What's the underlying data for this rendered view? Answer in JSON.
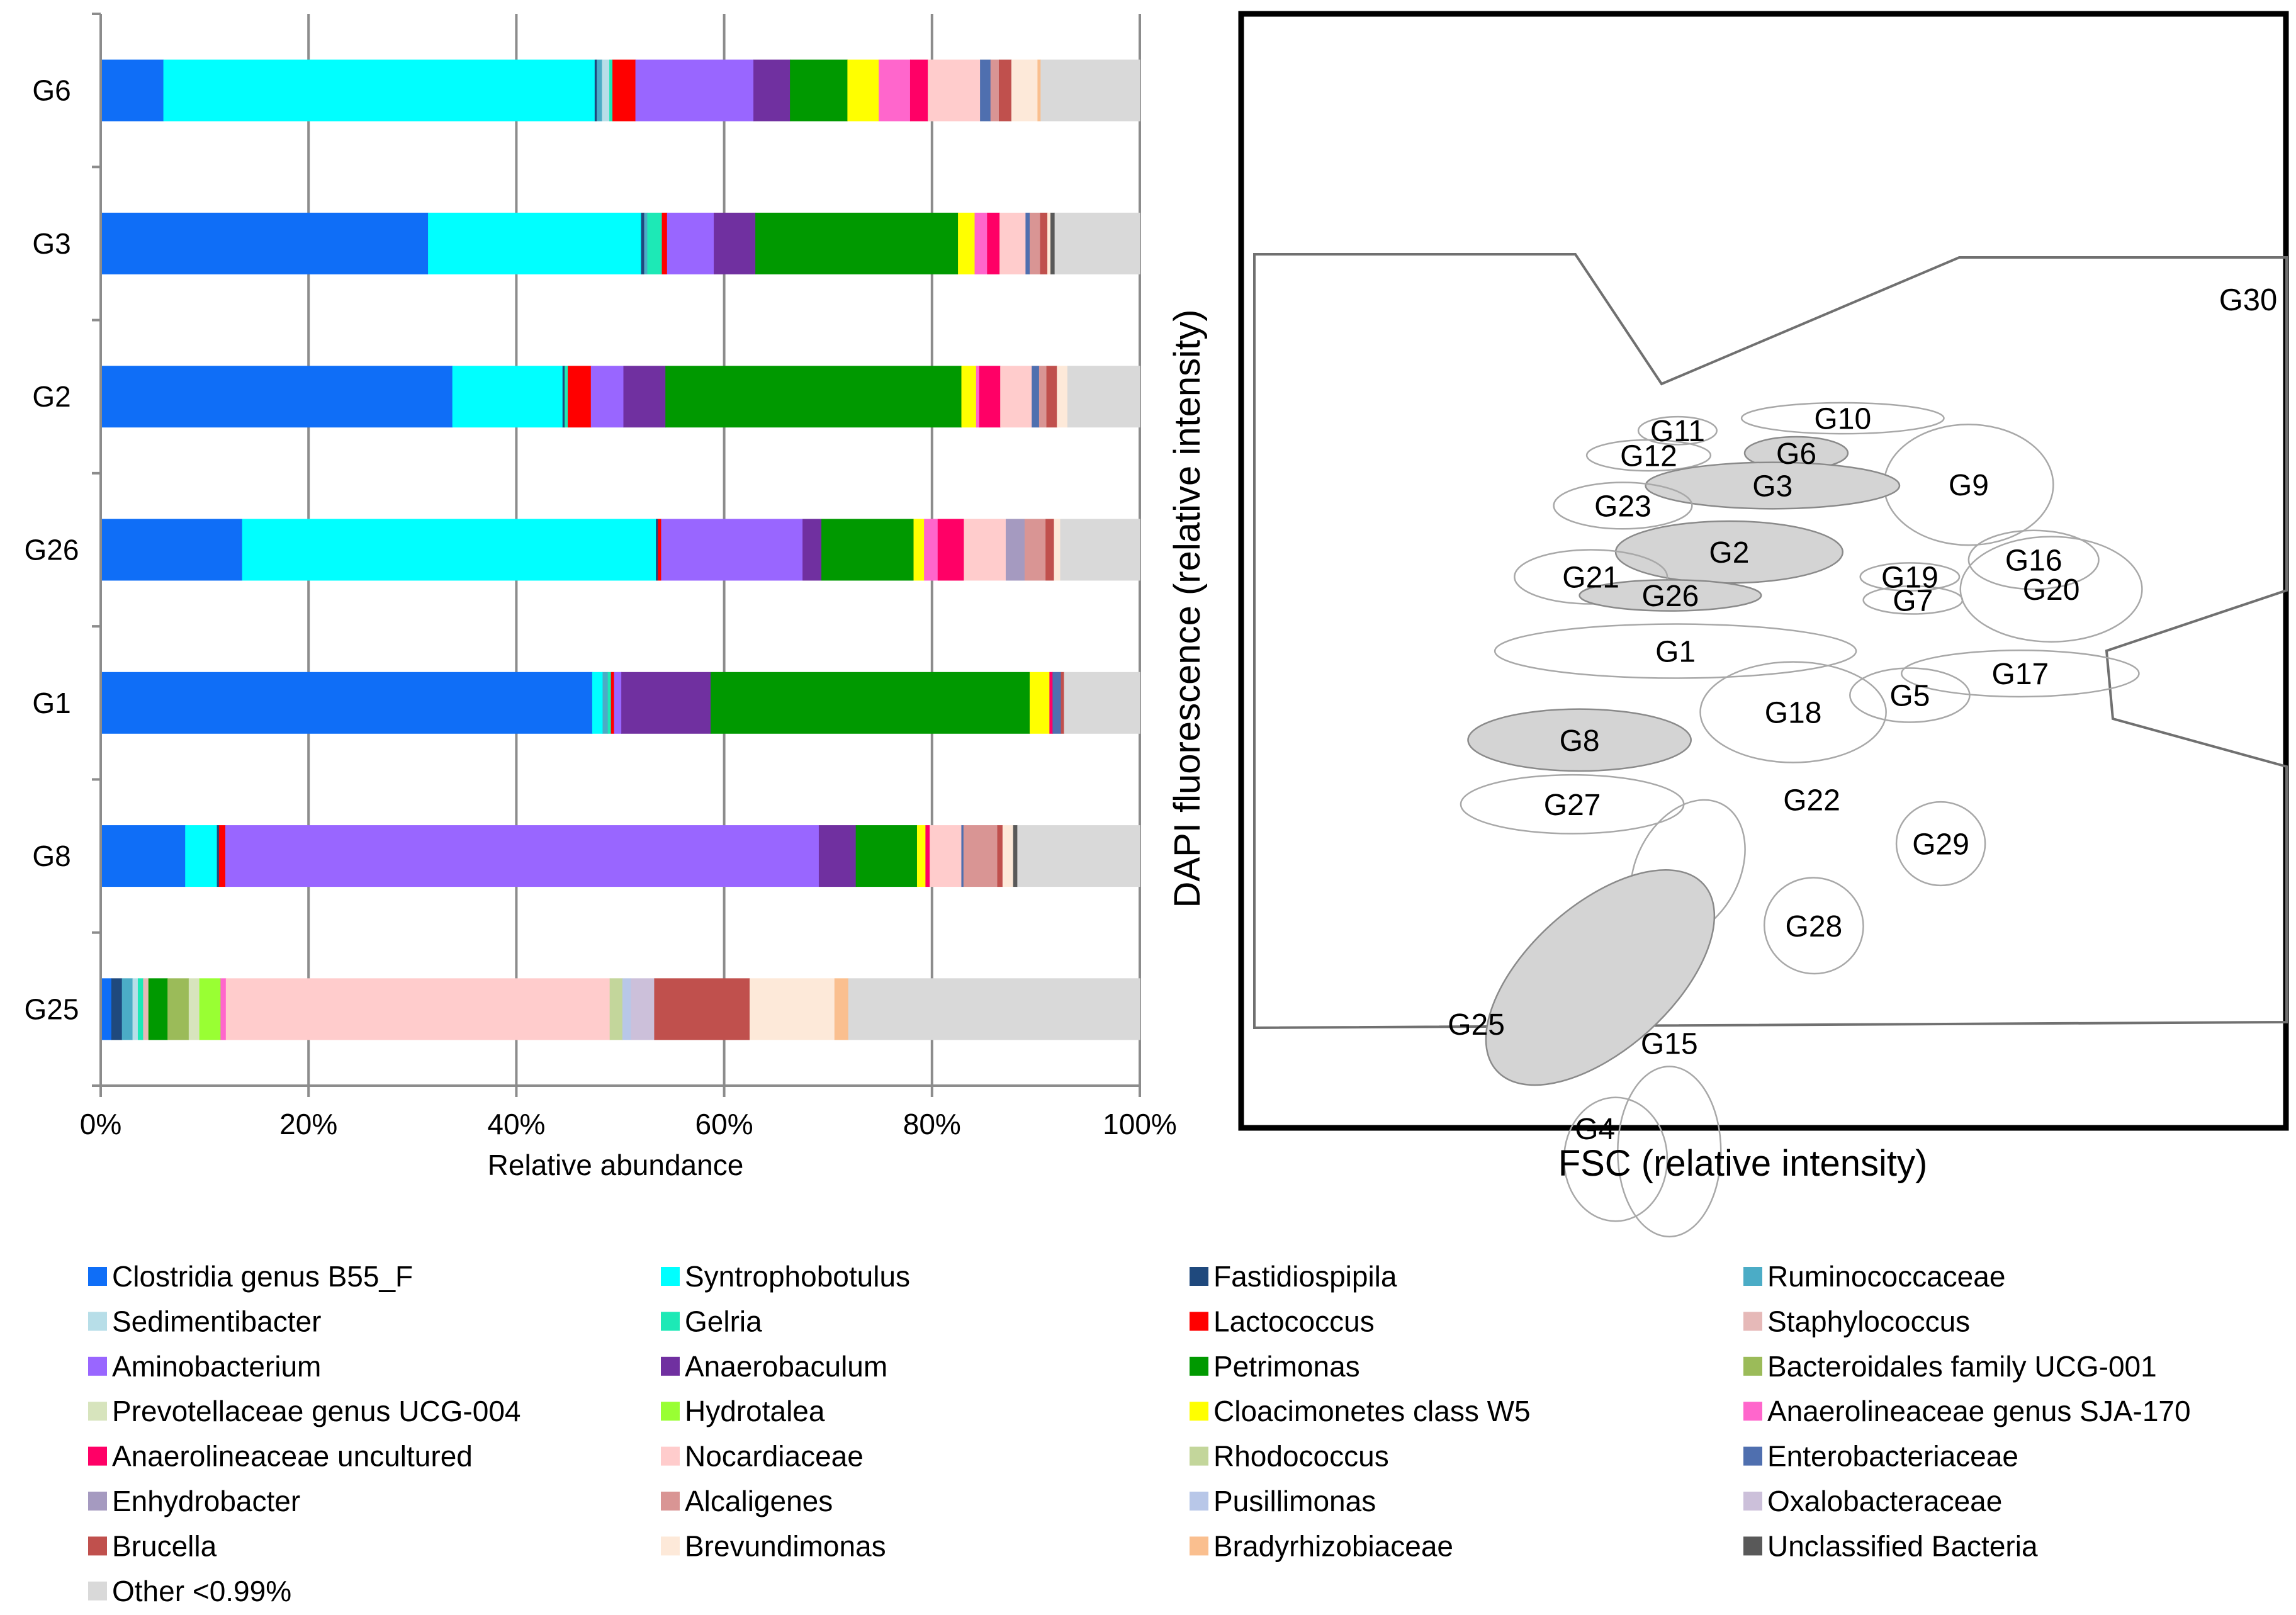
{
  "chart_data": [
    {
      "type": "bar",
      "orientation": "horizontal",
      "stacked": true,
      "normalized": true,
      "xlabel": "Relative abundance",
      "xlim": [
        0,
        100
      ],
      "xticks": [
        "0%",
        "20%",
        "40%",
        "60%",
        "80%",
        "100%"
      ],
      "grid": "vertical",
      "legend_position": "bottom",
      "categories": [
        "G6",
        "G3",
        "G2",
        "G26",
        "G1",
        "G8",
        "G25"
      ],
      "series": [
        {
          "name": "Clostridia genus B55_F",
          "color": "#0f6ef7",
          "values": [
            6.0,
            31.5,
            33.5,
            13.5,
            47.3,
            8.0,
            1.0
          ]
        },
        {
          "name": "Syntrophobotulus",
          "color": "#00ffff",
          "values": [
            41.3,
            20.5,
            10.5,
            39.5,
            1.0,
            3.0,
            0.0
          ]
        },
        {
          "name": "Fastidiospipila",
          "color": "#1f497d",
          "values": [
            0.2,
            0.3,
            0.2,
            0.2,
            0.0,
            0.2,
            1.0
          ]
        },
        {
          "name": "Ruminococcaceae",
          "color": "#4bacc6",
          "values": [
            0.5,
            0.3,
            0.0,
            0.0,
            0.5,
            0.0,
            1.0
          ]
        },
        {
          "name": "Sedimentibacter",
          "color": "#b7dee8",
          "values": [
            0.7,
            0.0,
            0.0,
            0.0,
            0.0,
            0.0,
            0.5
          ]
        },
        {
          "name": "Gelria",
          "color": "#1de9b6",
          "values": [
            0.3,
            1.4,
            0.3,
            0.0,
            0.3,
            0.0,
            0.5
          ]
        },
        {
          "name": "Lactococcus",
          "color": "#ff0000",
          "values": [
            2.2,
            0.5,
            2.2,
            0.3,
            0.3,
            0.6,
            0.0
          ]
        },
        {
          "name": "Staphylococcus",
          "color": "#e6b9b8",
          "values": [
            0.0,
            0.0,
            0.0,
            0.0,
            0.0,
            0.0,
            0.5
          ]
        },
        {
          "name": "Aminobacterium",
          "color": "#9966ff",
          "values": [
            11.3,
            4.5,
            3.1,
            13.5,
            0.7,
            56.2,
            0.0
          ]
        },
        {
          "name": "Anaerobaculum",
          "color": "#7030a0",
          "values": [
            3.5,
            4.0,
            4.0,
            1.8,
            8.6,
            3.5,
            0.0
          ]
        },
        {
          "name": "Petrimonas",
          "color": "#009900",
          "values": [
            5.5,
            19.5,
            28.2,
            8.8,
            30.7,
            5.8,
            1.8
          ]
        },
        {
          "name": "Bacteroidales family UCG-001",
          "color": "#9bbb59",
          "values": [
            0.0,
            0.0,
            0.0,
            0.0,
            0.0,
            0.0,
            2.0
          ]
        },
        {
          "name": "Prevotellaceae genus UCG-004",
          "color": "#d7e4bd",
          "values": [
            0.0,
            0.0,
            0.0,
            0.0,
            0.0,
            0.0,
            1.0
          ]
        },
        {
          "name": "Hydrotalea",
          "color": "#99ff33",
          "values": [
            0.0,
            0.0,
            0.0,
            0.0,
            0.0,
            0.0,
            2.0
          ]
        },
        {
          "name": "Cloacimonetes class W5",
          "color": "#ffff00",
          "values": [
            3.0,
            1.6,
            1.4,
            1.0,
            1.9,
            0.8,
            0.0
          ]
        },
        {
          "name": "Anaerolineaceae genus SJA-170",
          "color": "#ff66cc",
          "values": [
            3.0,
            1.2,
            0.3,
            1.3,
            0.0,
            0.0,
            0.5
          ]
        },
        {
          "name": "Anaerolineaceae uncultured",
          "color": "#ff0066",
          "values": [
            1.7,
            1.2,
            2.0,
            2.5,
            0.3,
            0.4,
            0.0
          ]
        },
        {
          "name": "Nocardiaceae",
          "color": "#ffcccc",
          "values": [
            5.0,
            2.5,
            3.0,
            4.0,
            0.0,
            3.0,
            36.2
          ]
        },
        {
          "name": "Rhodococcus",
          "color": "#c3d69b",
          "values": [
            0.0,
            0.0,
            0.0,
            0.0,
            0.0,
            0.0,
            1.2
          ]
        },
        {
          "name": "Enterobacteriaceae",
          "color": "#4f6faf",
          "values": [
            1.0,
            0.4,
            0.7,
            0.0,
            0.8,
            0.2,
            0.0
          ]
        },
        {
          "name": "Enhydrobacter",
          "color": "#a59ac0",
          "values": [
            0.0,
            0.0,
            0.0,
            1.8,
            0.0,
            0.0,
            0.0
          ]
        },
        {
          "name": "Alcaligenes",
          "color": "#d99594",
          "values": [
            0.8,
            1.0,
            0.7,
            2.0,
            0.0,
            3.2,
            0.0
          ]
        },
        {
          "name": "Pusillimonas",
          "color": "#b8c7e8",
          "values": [
            0.0,
            0.0,
            0.0,
            0.0,
            0.0,
            0.0,
            0.8
          ]
        },
        {
          "name": "Oxalobacteraceae",
          "color": "#ccc0da",
          "values": [
            0.0,
            0.0,
            0.0,
            0.0,
            0.0,
            0.0,
            2.2
          ]
        },
        {
          "name": "Brucella",
          "color": "#c0504d",
          "values": [
            1.2,
            0.7,
            1.0,
            0.8,
            0.3,
            0.5,
            9.0
          ]
        },
        {
          "name": "Brevundimonas",
          "color": "#fde9d9",
          "values": [
            2.5,
            0.3,
            1.0,
            0.6,
            0.0,
            1.0,
            8.0
          ]
        },
        {
          "name": "Bradyrhizobiaceae",
          "color": "#fabf8f",
          "values": [
            0.3,
            0.0,
            0.0,
            0.0,
            0.0,
            0.0,
            1.3
          ]
        },
        {
          "name": "Unclassified Bacteria",
          "color": "#595959",
          "values": [
            0.0,
            0.4,
            0.0,
            0.0,
            0.0,
            0.4,
            0.0
          ]
        },
        {
          "name": "Other <0.99%",
          "color": "#d9d9d9",
          "values": [
            9.5,
            8.2,
            6.9,
            7.6,
            7.3,
            11.6,
            27.5
          ]
        }
      ]
    },
    {
      "type": "scatter",
      "subtype": "flow-cytometry gate map",
      "xlabel": "FSC (relative intensity)",
      "ylabel": "DAPI fluorescence (relative intensity)",
      "xlim": [
        0,
        100
      ],
      "ylim": [
        0,
        100
      ],
      "main_gate_label": "G30",
      "gates": [
        {
          "name": "G10",
          "cx": 57.0,
          "cy": 78.8,
          "rx": 9.8,
          "ry": 2.0,
          "angle": 0,
          "filled": false
        },
        {
          "name": "G11",
          "cx": 41.0,
          "cy": 77.2,
          "rx": 3.8,
          "ry": 1.8,
          "angle": 0,
          "filled": false
        },
        {
          "name": "G6",
          "cx": 52.5,
          "cy": 74.3,
          "rx": 5.0,
          "ry": 2.1,
          "angle": 0,
          "filled": true
        },
        {
          "name": "G12",
          "cx": 38.2,
          "cy": 74.0,
          "rx": 6.0,
          "ry": 2.0,
          "angle": 0,
          "filled": false
        },
        {
          "name": "G9",
          "cx": 69.2,
          "cy": 70.2,
          "rx": 8.2,
          "ry": 7.8,
          "angle": 0,
          "filled": false
        },
        {
          "name": "G3",
          "cx": 50.2,
          "cy": 70.1,
          "rx": 12.3,
          "ry": 3.0,
          "angle": 0,
          "filled": true
        },
        {
          "name": "G23",
          "cx": 35.7,
          "cy": 67.5,
          "rx": 6.7,
          "ry": 3.0,
          "angle": 0,
          "filled": false
        },
        {
          "name": "G2",
          "cx": 46.0,
          "cy": 61.5,
          "rx": 11.0,
          "ry": 4.0,
          "angle": 0,
          "filled": true
        },
        {
          "name": "G16",
          "cx": 75.5,
          "cy": 60.5,
          "rx": 6.3,
          "ry": 3.8,
          "angle": 0,
          "filled": false
        },
        {
          "name": "G21",
          "cx": 32.6,
          "cy": 58.3,
          "rx": 7.4,
          "ry": 3.5,
          "angle": 0,
          "filled": false
        },
        {
          "name": "G19",
          "cx": 63.5,
          "cy": 58.3,
          "rx": 4.8,
          "ry": 1.8,
          "angle": 0,
          "filled": false
        },
        {
          "name": "G26",
          "cx": 40.3,
          "cy": 55.9,
          "rx": 8.8,
          "ry": 2.0,
          "angle": 0,
          "filled": true
        },
        {
          "name": "G7",
          "cx": 63.8,
          "cy": 55.3,
          "rx": 4.8,
          "ry": 1.8,
          "angle": 0,
          "filled": false
        },
        {
          "name": "G20",
          "cx": 77.2,
          "cy": 56.7,
          "rx": 8.8,
          "ry": 6.8,
          "angle": 0,
          "filled": false
        },
        {
          "name": "G1",
          "cx": 40.8,
          "cy": 48.7,
          "rx": 17.5,
          "ry": 3.5,
          "angle": 0,
          "filled": false
        },
        {
          "name": "G17",
          "cx": 74.2,
          "cy": 45.8,
          "rx": 11.5,
          "ry": 3.0,
          "angle": 0,
          "filled": false
        },
        {
          "name": "G5",
          "cx": 63.5,
          "cy": 43.0,
          "rx": 5.8,
          "ry": 3.5,
          "angle": 0,
          "filled": false
        },
        {
          "name": "G18",
          "cx": 52.2,
          "cy": 40.8,
          "rx": 9.0,
          "ry": 6.5,
          "angle": 0,
          "filled": false
        },
        {
          "name": "G8",
          "cx": 31.5,
          "cy": 37.2,
          "rx": 10.8,
          "ry": 4.0,
          "angle": 0,
          "filled": true
        },
        {
          "name": "G27",
          "cx": 30.8,
          "cy": 28.9,
          "rx": 10.8,
          "ry": 3.8,
          "angle": 0,
          "filled": false
        },
        {
          "name": "G29",
          "cx": 66.5,
          "cy": 23.8,
          "rx": 4.3,
          "ry": 5.4,
          "angle": 0,
          "filled": false
        },
        {
          "name": "G22",
          "cx": 42.0,
          "cy": 20.5,
          "rx": 5.0,
          "ry": 9.5,
          "angle": 28,
          "filled": false
        },
        {
          "name": "G28",
          "cx": 54.2,
          "cy": 13.2,
          "rx": 4.8,
          "ry": 6.2,
          "angle": 10,
          "filled": false
        },
        {
          "name": "G25",
          "cx": 33.5,
          "cy": 6.5,
          "rx": 7.0,
          "ry": 18.0,
          "angle": 48,
          "filled": true
        },
        {
          "name": "G15",
          "cx": 40.2,
          "cy": -16.0,
          "rx": 5.0,
          "ry": 11.0,
          "angle": 0,
          "filled": false
        },
        {
          "name": "G4",
          "cx": 35.0,
          "cy": -17.0,
          "rx": 5.0,
          "ry": 8.0,
          "angle": 0,
          "filled": false
        }
      ]
    }
  ]
}
